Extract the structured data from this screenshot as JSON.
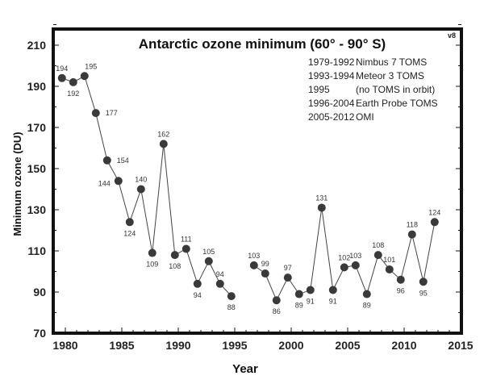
{
  "chart_data": {
    "type": "line",
    "title": "Antarctic ozone minimum (60° - 90° S)",
    "version_tag": "v8",
    "xlabel": "Year",
    "ylabel": "Minimum ozone (DU)",
    "xlim": [
      1979,
      2015
    ],
    "ylim": [
      70,
      220
    ],
    "xticks": [
      "1980",
      "1985",
      "1990",
      "1995",
      "2000",
      "2005",
      "2010",
      "2015"
    ],
    "yticks": [
      "70",
      "90",
      "110",
      "130",
      "150",
      "170",
      "190",
      "210"
    ],
    "legend": [
      {
        "years": "1979-1992",
        "instrument": "Nimbus 7 TOMS"
      },
      {
        "years": "1993-1994",
        "instrument": "Meteor 3 TOMS"
      },
      {
        "years": "1995",
        "instrument": "(no TOMS in orbit)"
      },
      {
        "years": "1996-2004",
        "instrument": "Earth Probe TOMS"
      },
      {
        "years": "2005-2012",
        "instrument": "OMI"
      }
    ],
    "series": [
      {
        "name": "segment-1979-1994",
        "x": [
          1979,
          1980,
          1981,
          1982,
          1983,
          1984,
          1985,
          1986,
          1987,
          1988,
          1989,
          1990,
          1991,
          1992,
          1993,
          1994
        ],
        "y": [
          194,
          192,
          195,
          177,
          154,
          144,
          124,
          140,
          109,
          162,
          108,
          111,
          94,
          105,
          94,
          88
        ]
      },
      {
        "name": "segment-1996-2012",
        "x": [
          1996,
          1997,
          1998,
          1999,
          2000,
          2001,
          2002,
          2003,
          2004,
          2005,
          2006,
          2007,
          2008,
          2009,
          2010,
          2011,
          2012
        ],
        "y": [
          103,
          99,
          86,
          97,
          89,
          91,
          131,
          91,
          102,
          103,
          89,
          108,
          101,
          96,
          118,
          95,
          124
        ]
      }
    ],
    "colors": {
      "marker": "#3a3a3a",
      "line": "#444444",
      "axis": "#111111"
    }
  }
}
